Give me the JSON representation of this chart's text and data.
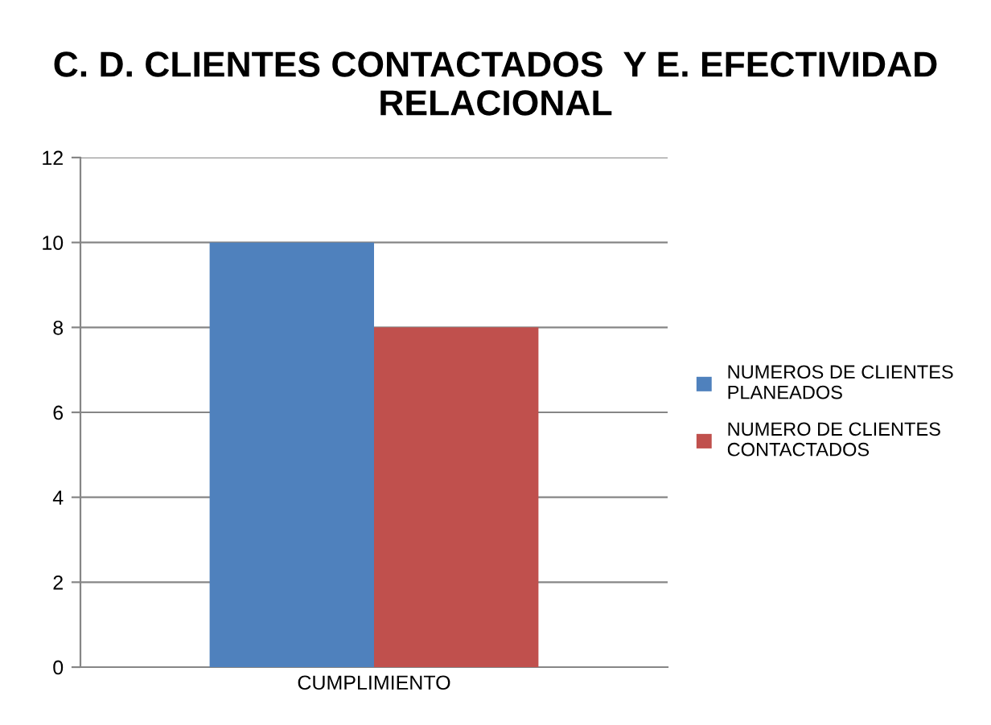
{
  "chart_data": {
    "type": "bar",
    "title": "C. D. CLIENTES CONTACTADOS  Y E. EFECTIVIDAD RELACIONAL",
    "categories": [
      "CUMPLIMIENTO"
    ],
    "series": [
      {
        "name": "NUMEROS DE CLIENTES PLANEADOS",
        "color": "#4f81bd",
        "values": [
          10
        ]
      },
      {
        "name": "NUMERO DE CLIENTES CONTACTADOS",
        "color": "#c0504d",
        "values": [
          8
        ]
      }
    ],
    "ylim": [
      0,
      12
    ],
    "yticks": [
      0,
      2,
      4,
      6,
      8,
      10,
      12
    ],
    "grid": "y",
    "legend": "right"
  }
}
